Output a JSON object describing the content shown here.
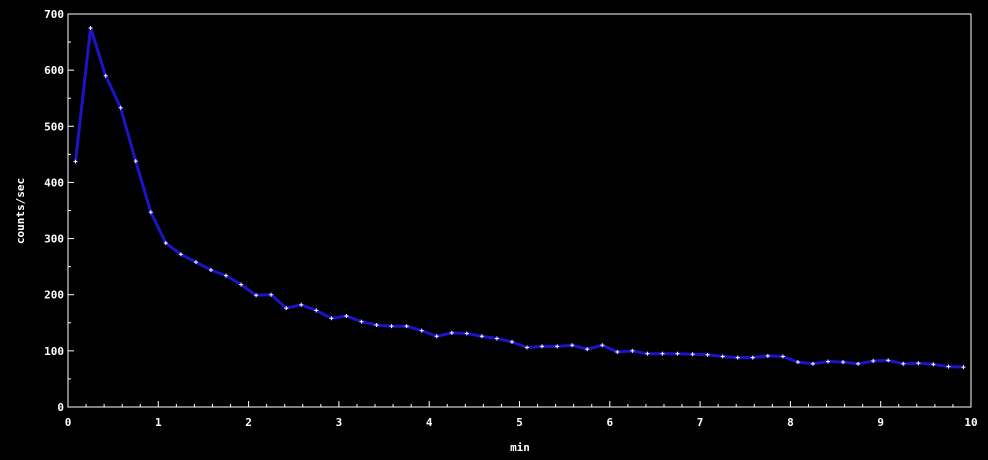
{
  "chart_data": {
    "type": "line",
    "xlabel": "min",
    "ylabel": "counts/sec",
    "xlim": [
      0,
      10
    ],
    "ylim": [
      0,
      700
    ],
    "x_ticks": [
      0,
      1,
      2,
      3,
      4,
      5,
      6,
      7,
      8,
      9,
      10
    ],
    "y_ticks": [
      0,
      100,
      200,
      300,
      400,
      500,
      600,
      700
    ],
    "grid": false,
    "series": [
      {
        "x": [
          0.083,
          0.25,
          0.417,
          0.583,
          0.75,
          0.917,
          1.083,
          1.25,
          1.417,
          1.583,
          1.75,
          1.917,
          2.083,
          2.25,
          2.417,
          2.583,
          2.75,
          2.917,
          3.083,
          3.25,
          3.417,
          3.583,
          3.75,
          3.917,
          4.083,
          4.25,
          4.417,
          4.583,
          4.75,
          4.917,
          5.083,
          5.25,
          5.417,
          5.583,
          5.75,
          5.917,
          6.083,
          6.25,
          6.417,
          6.583,
          6.75,
          6.917,
          7.083,
          7.25,
          7.417,
          7.583,
          7.75,
          7.917,
          8.083,
          8.25,
          8.417,
          8.583,
          8.75,
          8.917,
          9.083,
          9.25,
          9.417,
          9.583,
          9.75,
          9.917
        ],
        "y": [
          437,
          675,
          590,
          533,
          438,
          347,
          292,
          272,
          258,
          244,
          234,
          218,
          199,
          200,
          176,
          182,
          172,
          158,
          162,
          152,
          146,
          144,
          144,
          136,
          126,
          132,
          131,
          126,
          122,
          116,
          106,
          108,
          108,
          110,
          103,
          110,
          98,
          100,
          95,
          95,
          95,
          94,
          93,
          90,
          88,
          88,
          91,
          90,
          80,
          77,
          81,
          80,
          77,
          82,
          83,
          77,
          78,
          76,
          72,
          71
        ]
      }
    ],
    "colors": {
      "background": "#000000",
      "axis": "#ffffff",
      "text": "#ffffff",
      "line": "#1c14c8",
      "marker": "#ffffff"
    }
  }
}
